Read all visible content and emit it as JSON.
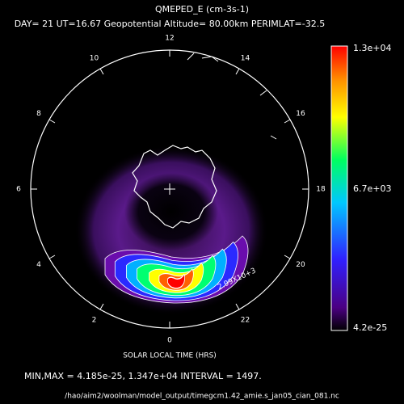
{
  "header": {
    "title": "QMEPED_E (cm-3s-1)",
    "subtitle": "DAY= 21 UT=16.67 Geopotential Altitude= 80.00km PERIMLAT=-32.5"
  },
  "local_time_labels": [
    "12",
    "14",
    "16",
    "18",
    "20",
    "22",
    "0",
    "2",
    "4",
    "6",
    "8",
    "10"
  ],
  "contour_label": "2.99X10+3",
  "colorbar": {
    "max_label": "1.3e+04",
    "mid_label": "6.7e+03",
    "min_label": "4.2e-25"
  },
  "footer": {
    "axis_label": "SOLAR LOCAL TIME (HRS)",
    "stats": "MIN,MAX =  4.185e-25, 1.347e+04 INTERVAL =       1497.",
    "file_path": "/hao/aim2/woolman/model_output/timegcm1.42_amie.s_jan05_cian_081.nc"
  }
}
